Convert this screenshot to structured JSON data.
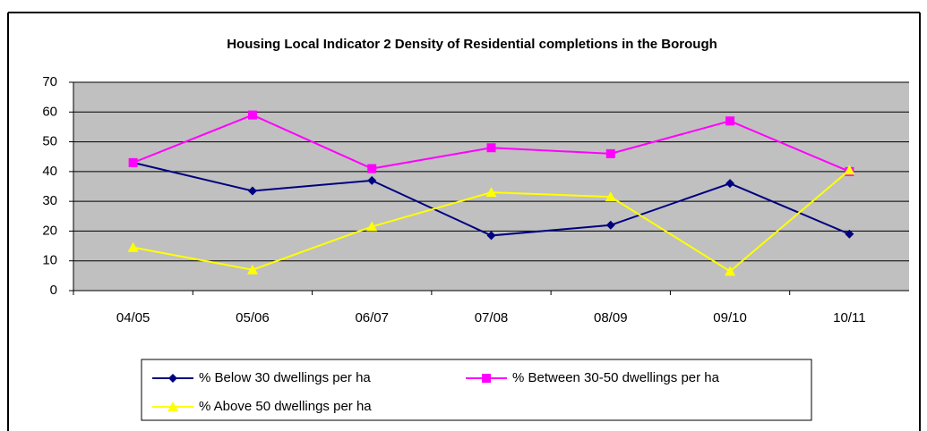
{
  "chart_data": {
    "type": "line",
    "title": "Housing Local Indicator 2 Density of Residential completions in the Borough",
    "categories": [
      "04/05",
      "05/06",
      "06/07",
      "07/08",
      "08/09",
      "09/10",
      "10/11"
    ],
    "series": [
      {
        "name": "% Below 30 dwellings per ha",
        "color": "#000080",
        "marker": "diamond",
        "values": [
          43,
          33.5,
          37,
          18.5,
          22,
          36,
          19
        ]
      },
      {
        "name": "% Between 30-50 dwellings per ha",
        "color": "#ff00ff",
        "marker": "square",
        "values": [
          43,
          59,
          41,
          48,
          46,
          57,
          40
        ]
      },
      {
        "name": "% Above 50 dwellings per ha",
        "color": "#ffff00",
        "marker": "triangle",
        "values": [
          14.5,
          7,
          21.5,
          33,
          31.5,
          6.5,
          40.5
        ]
      }
    ],
    "ylim": [
      0,
      70
    ],
    "yticks": [
      0,
      10,
      20,
      30,
      40,
      50,
      60,
      70
    ],
    "grid": true,
    "plot_background": "#c0c0c0",
    "legend": "bottom"
  }
}
